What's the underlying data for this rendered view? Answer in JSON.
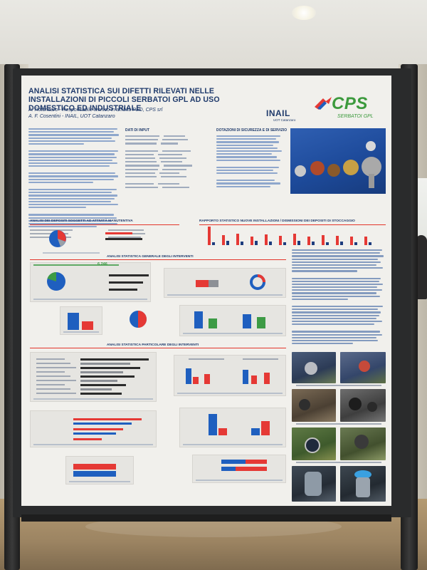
{
  "poster": {
    "title": "ANALISI STATISTICA SUI DIFETTI RILEVATI NELLE INSTALLAZIONI DI PICCOLI SERBATOI GPL AD USO DOMESTICO ED INDUSTRIALE",
    "authors": [
      "A. Rotondaro - Responsabile tecnico in ambito PED, CPS srl",
      "A. F. Cosentini - INAIL, UOT Catanzaro"
    ],
    "logos": {
      "inail_name": "INAIL",
      "inail_sub": "UOT Catanzaro",
      "cps_name": "CPS",
      "cps_sub": "SERBATOI GPL"
    },
    "sections": {
      "dati_di_input": "DATI DI INPUT",
      "dotazioni": "DOTAZIONI DI SICUREZZA E DI SERVIZIO",
      "depositi_manutenzione": "ANALISI DEI DEPOSITI SOGGETTI AD ATTIVITÀ MANUTENTIVA",
      "rapporto": "RAPPORTO STATISTICO NUOVE INSTALLAZIONI / DISMISSIONI DEI DEPOSITI DI STOCCAGGIO",
      "generale": "ANALISI STATISTICA GENERALE DEGLI INTERVENTI",
      "particolare": "ANALISI STATISTICA PARTICOLARE DEGLI INTERVENTI"
    },
    "interventi_analizzati": "6.246"
  },
  "colors": {
    "title_blue": "#1f3a6b",
    "accent_red": "#e53935",
    "chart_blue": "#1f5fbf",
    "cps_green": "#3c9a3d",
    "poster_bg": "#f1f0ec"
  },
  "icons": {
    "cps_logo": "cps-arrow-logo",
    "inail_logo": "inail-wordmark"
  }
}
